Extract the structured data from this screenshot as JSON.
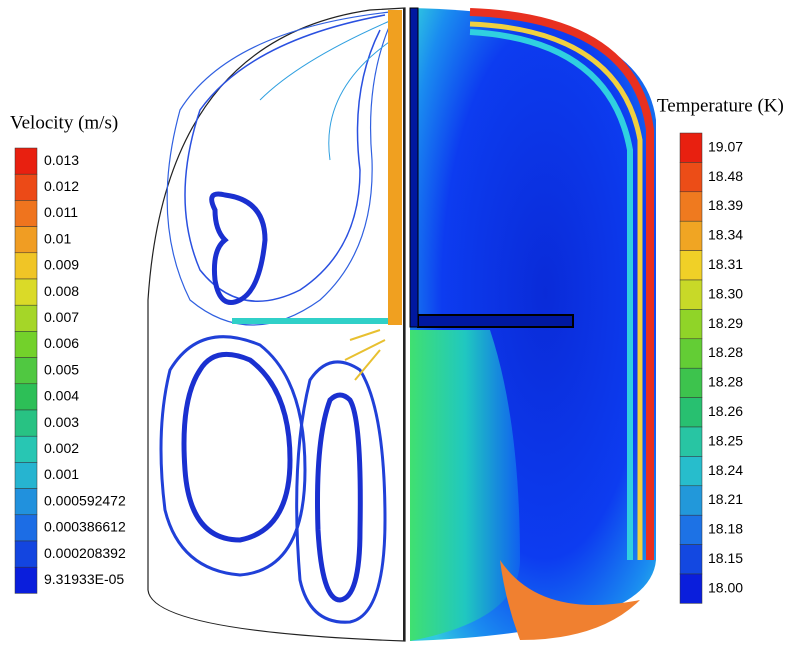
{
  "velocity_legend": {
    "title": "Velocity (m/s)",
    "labels": [
      "0.013",
      "0.012",
      "0.011",
      "0.01",
      "0.009",
      "0.008",
      "0.007",
      "0.006",
      "0.005",
      "0.004",
      "0.003",
      "0.002",
      "0.001",
      "0.000592472",
      "0.000386612",
      "0.000208392",
      "9.31933E-05"
    ]
  },
  "temperature_legend": {
    "title": "Temperature (K)",
    "labels": [
      "19.07",
      "18.48",
      "18.39",
      "18.34",
      "18.31",
      "18.30",
      "18.29",
      "18.28",
      "18.28",
      "18.26",
      "18.25",
      "18.24",
      "18.21",
      "18.18",
      "18.15",
      "18.00"
    ]
  }
}
